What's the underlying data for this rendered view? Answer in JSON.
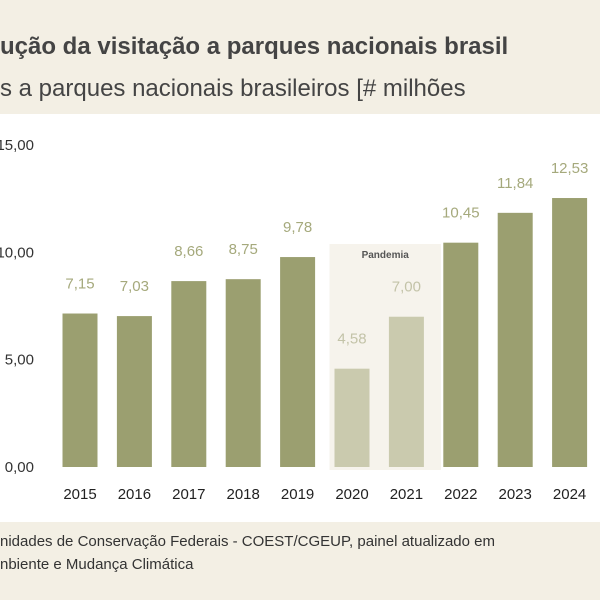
{
  "header": {
    "title_line1": "ução da visitação a parques nacionais brasil",
    "title_line2": "s a parques nacionais brasileiros [# milhões"
  },
  "footer": {
    "line1": "nidades de Conservação Federais - COEST/CGEUP, painel atualizado em",
    "line2": "nbiente e Mudança Climática"
  },
  "colors": {
    "bar": "#9b9f70",
    "bar_pandemic": "#cacaae",
    "label": "#a5a97c",
    "label_pandemic": "#c3c3a8",
    "band": "#f3efe4"
  },
  "chart_data": {
    "type": "bar",
    "categories": [
      "2015",
      "2016",
      "2017",
      "2018",
      "2019",
      "2020",
      "2021",
      "2022",
      "2023",
      "2024"
    ],
    "values": [
      7.15,
      7.03,
      8.66,
      8.75,
      9.78,
      4.58,
      7.0,
      10.45,
      11.84,
      12.53
    ],
    "value_labels": [
      "7,15",
      "7,03",
      "8,66",
      "8,75",
      "9,78",
      "4,58",
      "7,00",
      "10,45",
      "11,84",
      "12,53"
    ],
    "yticks": [
      0,
      5,
      10,
      15
    ],
    "ytick_labels": [
      "0,00",
      "5,00",
      "10,00",
      "15,00"
    ],
    "ylim": [
      0,
      15
    ],
    "highlight": {
      "label": "Pandemia",
      "categories": [
        "2020",
        "2021"
      ]
    },
    "grid": false
  }
}
